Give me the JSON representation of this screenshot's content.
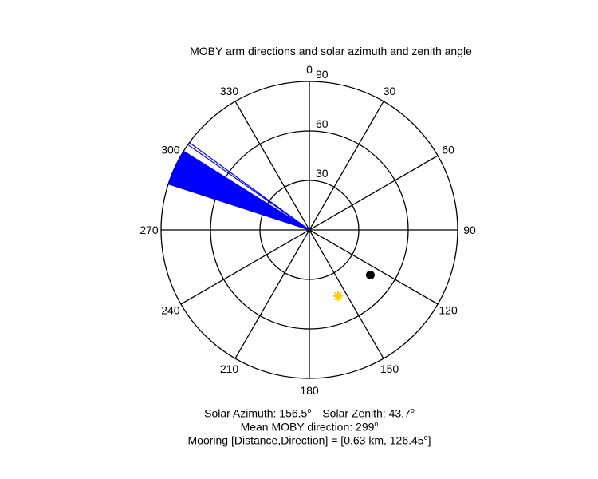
{
  "chart_data": {
    "type": "polar",
    "title": "MOBY arm directions and solar azimuth and zenith angle",
    "angle_ticks": [
      "0",
      "30",
      "60",
      "90",
      "120",
      "150",
      "180",
      "210",
      "240",
      "270",
      "300",
      "330"
    ],
    "angle_tick_values": [
      0,
      30,
      60,
      90,
      120,
      150,
      180,
      210,
      240,
      270,
      300,
      330
    ],
    "radial_ticks": [
      "30",
      "60",
      "90"
    ],
    "radial_tick_values": [
      30,
      60,
      90
    ],
    "rmax": 90,
    "arm_directions_deg": {
      "color": "#0000ff",
      "radius": 90,
      "from_deg": 288,
      "to_deg": 302,
      "outliers_deg": [
        305,
        306
      ]
    },
    "sun_marker": {
      "azimuth_deg": 156.5,
      "zenith_deg": 43.7,
      "color": "#ffcc00"
    },
    "mooring_marker": {
      "direction_deg": 126.45,
      "radius": 46,
      "color": "#000000"
    },
    "captions": {
      "solar_azimuth_label": "Solar Azimuth: 156.5",
      "solar_zenith_label": "Solar Zenith: 43.7",
      "degree_symbol": "o",
      "mean_moby_label": "Mean MOBY direction: 299",
      "mooring_label": "Mooring [Distance,Direction] = [0.63 km, 126.45",
      "mooring_suffix": "]"
    }
  }
}
